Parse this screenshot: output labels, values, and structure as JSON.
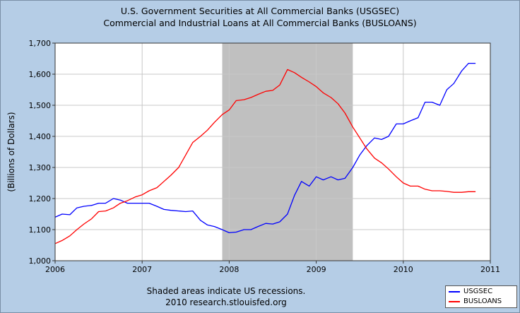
{
  "chart_data": {
    "type": "line",
    "title": "U.S. Government Securities at All Commercial Banks (USGSEC)",
    "subtitle": "Commercial and Industrial Loans at All Commercial Banks (BUSLOANS)",
    "xlabel": "",
    "ylabel": "(Billions of Dollars)",
    "xlim": [
      2006,
      2011
    ],
    "ylim": [
      1000,
      1700
    ],
    "x_ticks": [
      2006,
      2007,
      2008,
      2009,
      2010,
      2011
    ],
    "x_tick_labels": [
      "2006",
      "2007",
      "2008",
      "2009",
      "2010",
      "2011"
    ],
    "y_ticks": [
      1000,
      1100,
      1200,
      1300,
      1400,
      1500,
      1600,
      1700
    ],
    "y_tick_labels": [
      "1,000",
      "1,100",
      "1,200",
      "1,300",
      "1,400",
      "1,500",
      "1,600",
      "1,700"
    ],
    "recession": {
      "start": 2007.92,
      "end": 2009.42,
      "color": "#c0c0c0"
    },
    "grid": true,
    "legend_position": "bottom-right",
    "series": [
      {
        "name": "USGSEC",
        "color": "#0000ff",
        "x": [
          2006.0,
          2006.08,
          2006.17,
          2006.25,
          2006.33,
          2006.42,
          2006.5,
          2006.58,
          2006.67,
          2006.75,
          2006.83,
          2006.92,
          2007.0,
          2007.08,
          2007.17,
          2007.25,
          2007.33,
          2007.42,
          2007.5,
          2007.58,
          2007.67,
          2007.75,
          2007.83,
          2007.92,
          2008.0,
          2008.08,
          2008.17,
          2008.25,
          2008.33,
          2008.42,
          2008.5,
          2008.58,
          2008.67,
          2008.75,
          2008.83,
          2008.92,
          2009.0,
          2009.08,
          2009.17,
          2009.25,
          2009.33,
          2009.42,
          2009.5,
          2009.58,
          2009.67,
          2009.75,
          2009.83,
          2009.92,
          2010.0,
          2010.08,
          2010.17,
          2010.25,
          2010.33,
          2010.42,
          2010.5,
          2010.58,
          2010.67,
          2010.75,
          2010.83
        ],
        "values": [
          1140,
          1150,
          1148,
          1170,
          1175,
          1178,
          1185,
          1185,
          1200,
          1195,
          1185,
          1185,
          1185,
          1185,
          1175,
          1165,
          1162,
          1160,
          1158,
          1160,
          1130,
          1115,
          1110,
          1100,
          1090,
          1092,
          1100,
          1100,
          1110,
          1120,
          1118,
          1125,
          1150,
          1210,
          1255,
          1240,
          1270,
          1260,
          1270,
          1260,
          1265,
          1300,
          1340,
          1370,
          1395,
          1390,
          1400,
          1440,
          1440,
          1450,
          1460,
          1510,
          1510,
          1500,
          1550,
          1570,
          1610,
          1635,
          1635
        ]
      },
      {
        "name": "BUSLOANS",
        "color": "#ff0000",
        "x": [
          2006.0,
          2006.08,
          2006.17,
          2006.25,
          2006.33,
          2006.42,
          2006.5,
          2006.58,
          2006.67,
          2006.75,
          2006.83,
          2006.92,
          2007.0,
          2007.08,
          2007.17,
          2007.25,
          2007.33,
          2007.42,
          2007.5,
          2007.58,
          2007.67,
          2007.75,
          2007.83,
          2007.92,
          2008.0,
          2008.08,
          2008.17,
          2008.25,
          2008.33,
          2008.42,
          2008.5,
          2008.58,
          2008.67,
          2008.75,
          2008.83,
          2008.92,
          2009.0,
          2009.08,
          2009.17,
          2009.25,
          2009.33,
          2009.42,
          2009.5,
          2009.58,
          2009.67,
          2009.75,
          2009.83,
          2009.92,
          2010.0,
          2010.08,
          2010.17,
          2010.25,
          2010.33,
          2010.42,
          2010.5,
          2010.58,
          2010.67,
          2010.75,
          2010.83
        ],
        "values": [
          1055,
          1065,
          1080,
          1100,
          1118,
          1135,
          1158,
          1160,
          1170,
          1185,
          1193,
          1205,
          1212,
          1225,
          1235,
          1255,
          1275,
          1300,
          1340,
          1380,
          1400,
          1420,
          1445,
          1470,
          1485,
          1515,
          1518,
          1525,
          1535,
          1545,
          1548,
          1565,
          1615,
          1605,
          1590,
          1575,
          1560,
          1540,
          1525,
          1505,
          1475,
          1430,
          1395,
          1360,
          1330,
          1315,
          1295,
          1270,
          1250,
          1240,
          1240,
          1230,
          1225,
          1225,
          1223,
          1220,
          1220,
          1222,
          1222
        ]
      }
    ],
    "footnote": [
      "Shaded areas indicate US recessions.",
      "2010 research.stlouisfed.org"
    ]
  }
}
